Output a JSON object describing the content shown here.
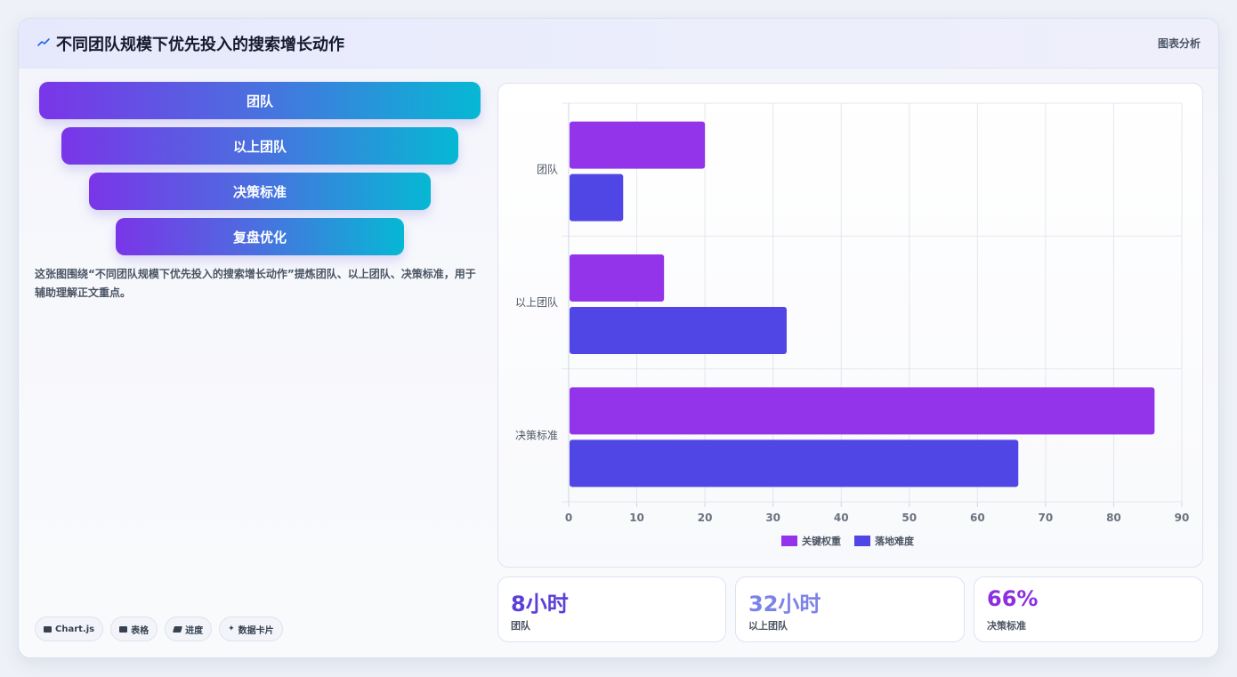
{
  "header": {
    "title": "不同团队规模下优先投入的搜索增长动作",
    "tag": "图表分析"
  },
  "funnel": [
    {
      "label": "团队"
    },
    {
      "label": "以上团队"
    },
    {
      "label": "决策标准"
    },
    {
      "label": "复盘优化"
    }
  ],
  "description": "这张图围绕“不同团队规模下优先投入的搜索增长动作”提炼团队、以上团队、决策标准，用于辅助理解正文重点。",
  "chips": [
    {
      "label": "Chart.js",
      "icon": "chart-icon"
    },
    {
      "label": "表格",
      "icon": "table-icon"
    },
    {
      "label": "进度",
      "icon": "progress-icon"
    },
    {
      "label": "数据卡片",
      "icon": "sparkle-icon"
    }
  ],
  "stats": [
    {
      "value": "8小时",
      "label": "团队",
      "color": "#5b3fd8"
    },
    {
      "value": "32小时",
      "label": "以上团队",
      "color": "#7c83e8"
    },
    {
      "value": "66%",
      "label": "决策标准",
      "color": "#8b2fe0"
    }
  ],
  "chart_data": {
    "type": "bar",
    "orientation": "horizontal",
    "categories": [
      "团队",
      "以上团队",
      "决策标准"
    ],
    "series": [
      {
        "name": "关键权重",
        "values": [
          20,
          14,
          86
        ],
        "color": "#9333ea"
      },
      {
        "name": "落地难度",
        "values": [
          8,
          32,
          66
        ],
        "color": "#4f46e5"
      }
    ],
    "xlim": [
      0,
      90
    ],
    "xticks": [
      0,
      10,
      20,
      30,
      40,
      50,
      60,
      70,
      80,
      90
    ],
    "grid": true,
    "legend": "bottom-center"
  }
}
